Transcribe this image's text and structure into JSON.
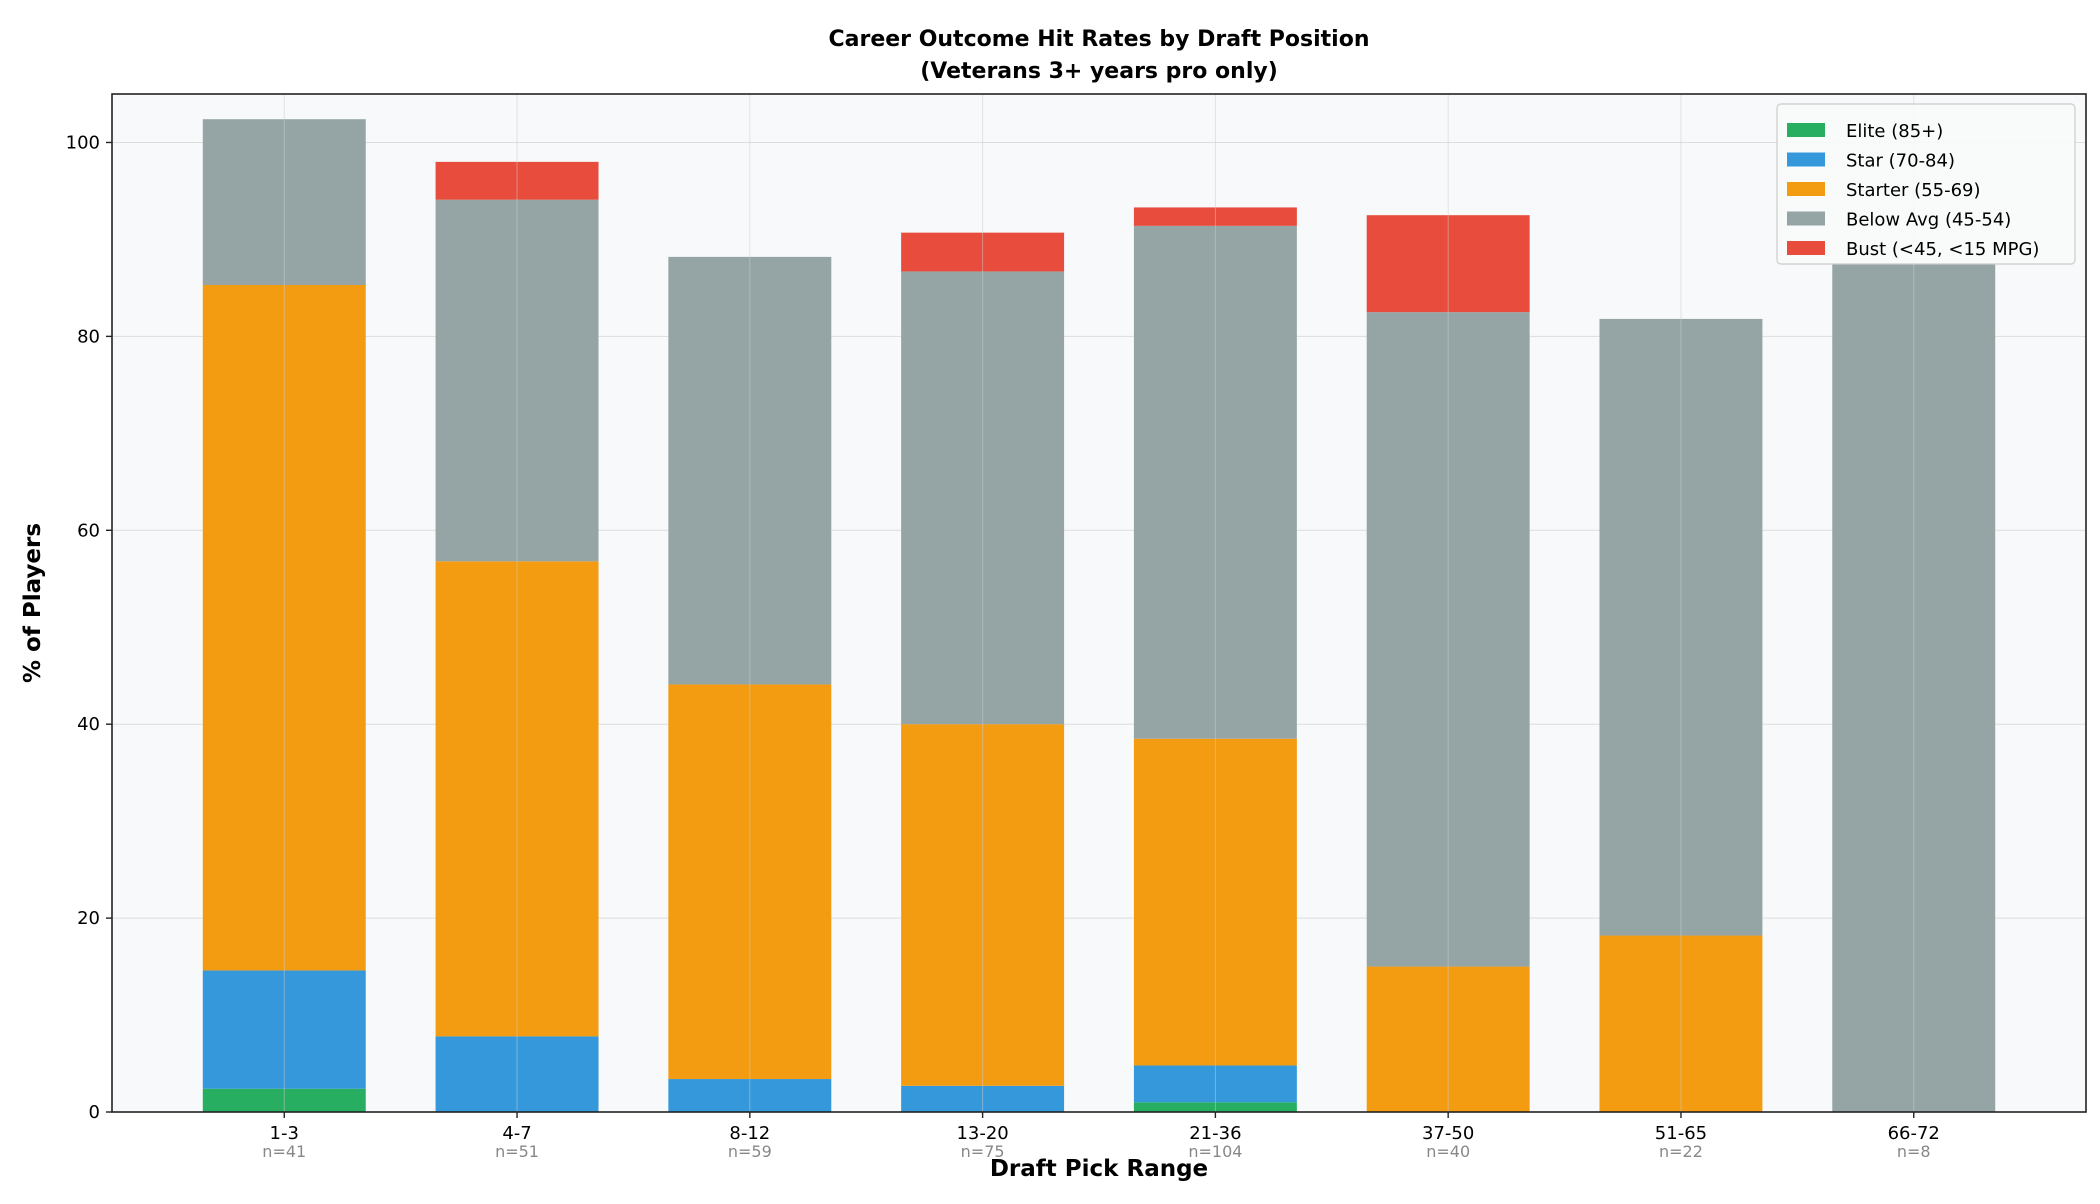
{
  "chart_data": {
    "type": "bar",
    "stacked": true,
    "title": "Career Outcome Hit Rates by Draft Position",
    "subtitle": "(Veterans 3+ years pro only)",
    "xlabel": "Draft Pick Range",
    "ylabel": "% of Players",
    "ylim": [
      0,
      105
    ],
    "yticks": [
      0,
      20,
      40,
      60,
      80,
      100
    ],
    "grid": true,
    "legend_position": "top-right",
    "categories": [
      "1-3",
      "4-7",
      "8-12",
      "13-20",
      "21-36",
      "37-50",
      "51-65",
      "66-72"
    ],
    "sample_sizes": [
      "n=41",
      "n=51",
      "n=59",
      "n=75",
      "n=104",
      "n=40",
      "n=22",
      "n=8"
    ],
    "series": [
      {
        "name": "Elite (85+)",
        "color": "#27ae60",
        "values": [
          2.4,
          0,
          0,
          0,
          1.0,
          0,
          0,
          0
        ]
      },
      {
        "name": "Star (70-84)",
        "color": "#3498db",
        "values": [
          12.2,
          7.8,
          3.4,
          2.7,
          3.8,
          0,
          0,
          0
        ]
      },
      {
        "name": "Starter (55-69)",
        "color": "#f39c12",
        "values": [
          70.7,
          49.0,
          40.7,
          37.3,
          33.7,
          15.0,
          18.2,
          0
        ]
      },
      {
        "name": "Below Avg (45-54)",
        "color": "#95a5a6",
        "values": [
          17.1,
          37.3,
          44.1,
          46.7,
          52.9,
          67.5,
          63.6,
          87.5
        ]
      },
      {
        "name": "Bust (<45, <15 MPG)",
        "color": "#e74c3c",
        "values": [
          0,
          3.9,
          0,
          4.0,
          1.9,
          10.0,
          0,
          0
        ]
      }
    ]
  }
}
